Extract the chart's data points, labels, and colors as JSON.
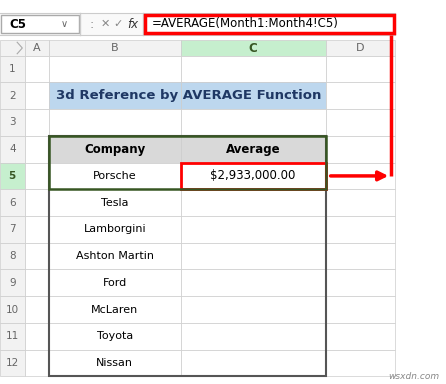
{
  "title": "3d Reference by AVERAGE Function",
  "title_bg": "#BDD7EE",
  "formula_bar_cell": "C5",
  "formula_bar_text": "=AVERAGE(Month1:Month4!C5)",
  "formula_bar_outline": "#FF0000",
  "col_labels": [
    "A",
    "B",
    "C",
    "D"
  ],
  "row_labels": [
    "1",
    "2",
    "3",
    "4",
    "5",
    "6",
    "7",
    "8",
    "9",
    "10",
    "11",
    "12"
  ],
  "header_row": [
    "Company",
    "Average"
  ],
  "companies": [
    "Porsche",
    "Tesla",
    "Lamborgini",
    "Ashton Martin",
    "Ford",
    "McLaren",
    "Toyota",
    "Nissan"
  ],
  "highlight_value": "$2,933,000.00",
  "header_bg": "#D9D9D9",
  "highlight_cell_outline": "#FF0000",
  "active_col_header_bg": "#8FBC8F",
  "table_outline": "#404040",
  "bg_color": "#FFFFFF",
  "formula_bg": "#FFFFFF",
  "watermark": "wsxdn.com",
  "arrow_color": "#FF0000",
  "green_selection": "#375623",
  "row_header_bg": "#F2F2F2",
  "col_header_bg": "#F2F2F2",
  "active_row_header_bg": "#C6EFCE",
  "cell_bg": "#FFFFFF"
}
